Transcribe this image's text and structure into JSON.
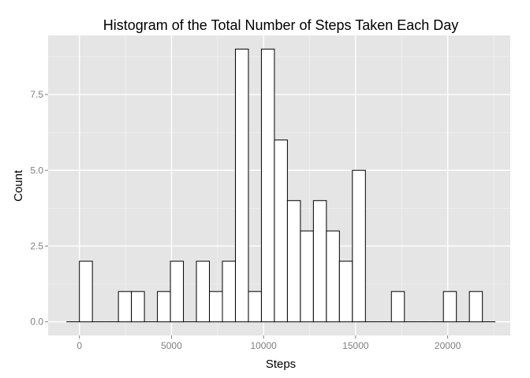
{
  "chart_data": {
    "type": "bar",
    "title": "Histogram of the Total Number of Steps Taken Each Day",
    "xlabel": "Steps",
    "ylabel": "Count",
    "x_ticks": [
      0,
      5000,
      10000,
      15000,
      20000
    ],
    "x_tick_labels": [
      "0",
      "5000",
      "10000",
      "15000",
      "20000"
    ],
    "y_ticks": [
      0,
      2.5,
      5,
      7.5
    ],
    "y_tick_labels": [
      "0.0",
      "2.5",
      "5.0",
      "7.5"
    ],
    "xlim": [
      -1700,
      23400
    ],
    "ylim": [
      -0.45,
      9.45
    ],
    "bin_width": 706,
    "bin_centers": [
      -353,
      353,
      1059,
      1765,
      2471,
      3177,
      3883,
      4589,
      5295,
      6001,
      6707,
      7413,
      8119,
      8825,
      9531,
      10237,
      10943,
      11649,
      12355,
      13061,
      13767,
      14473,
      15179,
      15885,
      16591,
      17297,
      18003,
      18709,
      19415,
      20121,
      20827,
      21533,
      22239
    ],
    "counts": [
      0,
      2,
      0,
      0,
      1,
      1,
      0,
      1,
      2,
      0,
      2,
      1,
      2,
      9,
      1,
      9,
      6,
      4,
      3,
      4,
      3,
      2,
      5,
      0,
      0,
      1,
      0,
      0,
      0,
      1,
      0,
      1,
      0
    ],
    "grid": true,
    "bar_fill": "#ffffff",
    "bar_stroke": "#000000",
    "panel_background": "#e5e5e5",
    "grid_major_color": "#ffffff",
    "grid_minor_color": "#f2f2f2"
  }
}
